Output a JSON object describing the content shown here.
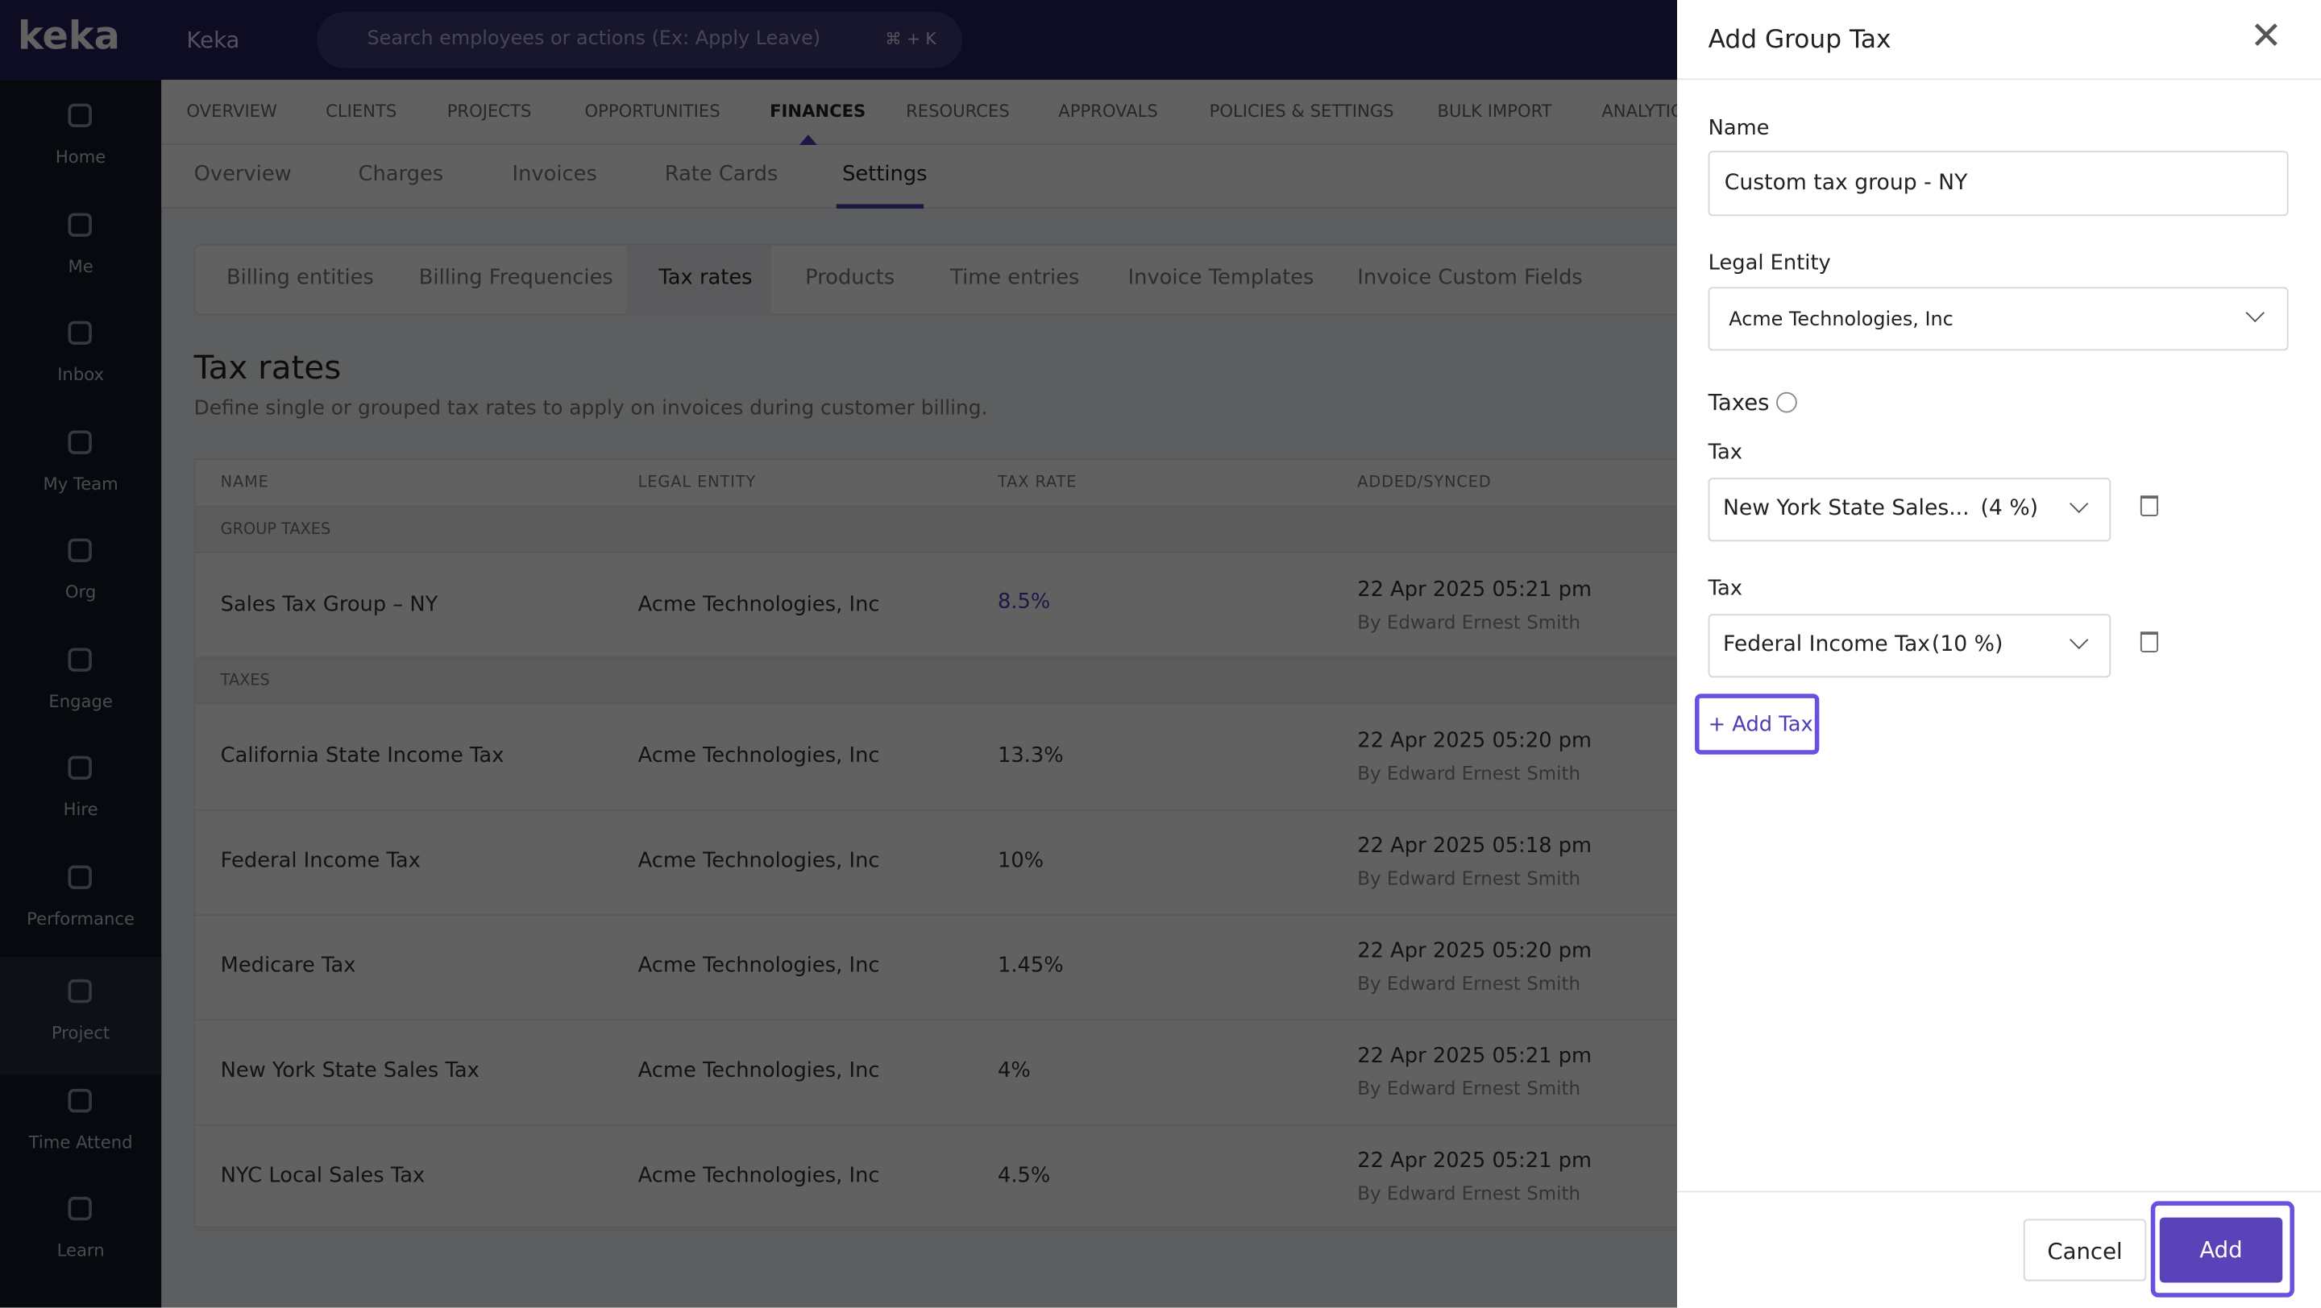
{
  "app": {
    "logo": "keka",
    "org": "Keka",
    "search_placeholder": "Search employees or actions (Ex: Apply Leave)",
    "shortcut": "⌘ + K"
  },
  "sidebar": [
    "Home",
    "Me",
    "Inbox",
    "My Team",
    "Org",
    "Engage",
    "Hire",
    "Performance",
    "Project",
    "Time Attend",
    "Learn"
  ],
  "top_nav": [
    "OVERVIEW",
    "CLIENTS",
    "PROJECTS",
    "OPPORTUNITIES",
    "FINANCES",
    "RESOURCES",
    "APPROVALS",
    "POLICIES & SETTINGS",
    "BULK IMPORT",
    "ANALYTICS"
  ],
  "sub_nav": [
    "Overview",
    "Charges",
    "Invoices",
    "Rate Cards",
    "Settings"
  ],
  "settings_tabs": [
    "Billing entities",
    "Billing Frequencies",
    "Tax rates",
    "Products",
    "Time entries",
    "Invoice Templates",
    "Invoice Custom Fields"
  ],
  "page": {
    "title": "Tax rates",
    "description": "Define single or grouped tax rates to apply on invoices during customer billing."
  },
  "table": {
    "columns": [
      "NAME",
      "LEGAL ENTITY",
      "TAX RATE",
      "ADDED/SYNCED"
    ],
    "sections": [
      {
        "label": "GROUP TAXES",
        "rows": [
          [
            "Sales Tax Group – NY",
            "Acme Technologies, Inc",
            "8.5%",
            "22 Apr 2025 05:21 pm",
            "By Edward Ernest Smith"
          ]
        ]
      },
      {
        "label": "TAXES",
        "rows": [
          [
            "California State Income Tax",
            "Acme Technologies, Inc",
            "13.3%",
            "22 Apr 2025 05:20 pm",
            "By Edward Ernest Smith"
          ],
          [
            "Federal Income Tax",
            "Acme Technologies, Inc",
            "10%",
            "22 Apr 2025 05:18 pm",
            "By Edward Ernest Smith"
          ],
          [
            "Medicare Tax",
            "Acme Technologies, Inc",
            "1.45%",
            "22 Apr 2025 05:20 pm",
            "By Edward Ernest Smith"
          ],
          [
            "New York State Sales Tax",
            "Acme Technologies, Inc",
            "4%",
            "22 Apr 2025 05:21 pm",
            "By Edward Ernest Smith"
          ],
          [
            "NYC Local Sales Tax",
            "Acme Technologies, Inc",
            "4.5%",
            "22 Apr 2025 05:21 pm",
            "By Edward Ernest Smith"
          ]
        ]
      }
    ]
  },
  "panel": {
    "title": "Add Group Tax",
    "name_label": "Name",
    "name_value": "Custom tax group - NY",
    "entity_label": "Legal Entity",
    "entity_value": "Acme Technologies, Inc",
    "taxes_label": "Taxes",
    "taxes": [
      {
        "label": "Tax",
        "name": "New York State Sales...",
        "rate": "(4 %)"
      },
      {
        "label": "Tax",
        "name": "Federal Income Tax",
        "rate": "(10 %)"
      }
    ],
    "add_tax": "+ Add Tax",
    "cancel": "Cancel",
    "add": "Add"
  }
}
